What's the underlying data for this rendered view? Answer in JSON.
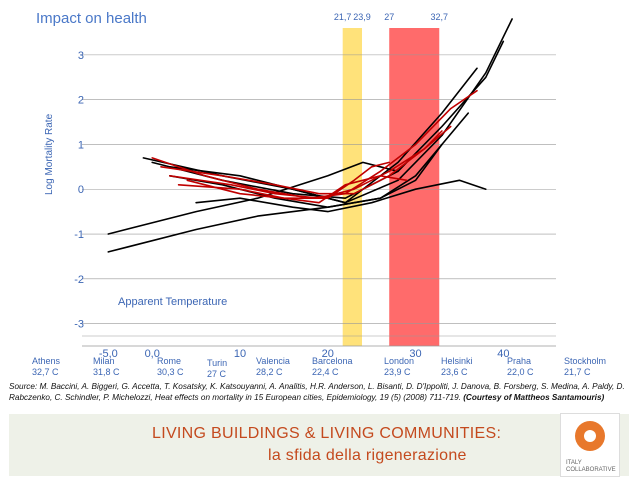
{
  "title": "Impact on health",
  "colors": {
    "axis_text": "#3c66b4",
    "yellow_band": "#ffe27a",
    "red_band": "#ff6b6b",
    "black_curve": "#000000",
    "red_curve": "#c00000"
  },
  "chart_data": {
    "type": "line",
    "ylabel": "Log Mortality Rate",
    "xlabel": "Apparent Temperature",
    "xlim": [
      -8,
      46
    ],
    "ylim": [
      -3.5,
      3.6
    ],
    "x_ticks": [
      "-5,0",
      "0,0",
      "10",
      "20",
      "30",
      "40"
    ],
    "x_tick_values": [
      -5,
      0,
      10,
      20,
      30,
      40
    ],
    "y_ticks": [
      "3",
      "2",
      "1",
      "0",
      "-1",
      "-2",
      "-3"
    ],
    "y_tick_values": [
      3,
      2,
      1,
      0,
      -1,
      -2,
      -3
    ],
    "grid": "horizontal",
    "top_markers": [
      "21,7",
      "23,9",
      "27",
      "32,7"
    ],
    "top_marker_values": [
      21.7,
      23.9,
      27,
      32.7
    ],
    "bands": [
      {
        "from": 21.7,
        "to": 23.9,
        "color": "yellow"
      },
      {
        "from": 27,
        "to": 32.7,
        "color": "red"
      }
    ],
    "series": [
      {
        "color": "black",
        "x": [
          -1,
          8,
          16,
          22,
          28,
          33,
          38,
          41
        ],
        "y": [
          0.7,
          0.3,
          0.0,
          -0.3,
          0.2,
          1.2,
          2.6,
          3.8
        ]
      },
      {
        "color": "black",
        "x": [
          0,
          8,
          16,
          22,
          28,
          33,
          38,
          40
        ],
        "y": [
          0.6,
          0.2,
          -0.1,
          -0.2,
          0.4,
          1.4,
          2.5,
          3.3
        ]
      },
      {
        "color": "black",
        "x": [
          2,
          10,
          16,
          22,
          28,
          33,
          37
        ],
        "y": [
          0.5,
          0.3,
          0.0,
          -0.3,
          0.6,
          1.7,
          2.7
        ]
      },
      {
        "color": "black",
        "x": [
          -5,
          5,
          12,
          20,
          26,
          30,
          33
        ],
        "y": [
          -1.4,
          -0.9,
          -0.6,
          -0.4,
          -0.2,
          0.2,
          1.0
        ]
      },
      {
        "color": "black",
        "x": [
          2,
          8,
          14,
          20,
          26,
          30,
          33,
          36
        ],
        "y": [
          0.3,
          0.1,
          -0.2,
          -0.4,
          -0.2,
          0.3,
          1.0,
          1.7
        ]
      },
      {
        "color": "black",
        "x": [
          5,
          10,
          16,
          20,
          25,
          30,
          35,
          38
        ],
        "y": [
          -0.3,
          -0.2,
          -0.4,
          -0.5,
          -0.3,
          0.0,
          0.2,
          0.0
        ]
      },
      {
        "color": "black",
        "x": [
          -5,
          5,
          12,
          20,
          24,
          28
        ],
        "y": [
          -1.0,
          -0.5,
          -0.2,
          0.3,
          0.6,
          0.4
        ]
      },
      {
        "color": "red",
        "x": [
          0,
          6,
          12,
          18,
          22,
          26,
          30,
          34,
          37
        ],
        "y": [
          0.7,
          0.3,
          0.0,
          -0.2,
          -0.1,
          0.4,
          1.0,
          1.8,
          2.2
        ]
      },
      {
        "color": "red",
        "x": [
          1,
          8,
          14,
          19,
          23,
          27,
          31,
          34
        ],
        "y": [
          0.5,
          0.3,
          0.1,
          -0.1,
          -0.1,
          0.3,
          0.9,
          1.4
        ]
      },
      {
        "color": "red",
        "x": [
          2,
          9,
          14,
          19,
          23,
          27,
          31,
          33
        ],
        "y": [
          0.3,
          0.1,
          -0.1,
          -0.2,
          0.0,
          0.4,
          0.9,
          1.3
        ]
      },
      {
        "color": "red",
        "x": [
          3,
          10,
          15,
          19,
          22,
          26,
          29
        ],
        "y": [
          0.1,
          0.0,
          -0.2,
          -0.3,
          0.1,
          0.3,
          0.2
        ]
      },
      {
        "color": "red",
        "x": [
          4,
          10,
          15,
          20,
          23,
          25,
          27
        ],
        "y": [
          0.2,
          -0.1,
          -0.2,
          -0.2,
          0.2,
          0.5,
          0.6
        ]
      }
    ]
  },
  "cities": [
    {
      "name": "Athens",
      "temp": "32,7 C"
    },
    {
      "name": "Milan",
      "temp": "31,8 C"
    },
    {
      "name": "Rome",
      "temp": "30,3 C"
    },
    {
      "name": "Turin",
      "temp": "27 C"
    },
    {
      "name": "Valencia",
      "temp": "28,2 C"
    },
    {
      "name": "Barcelona",
      "temp": "22,4 C"
    },
    {
      "name": "London",
      "temp": "23,9 C"
    },
    {
      "name": "Helsinki",
      "temp": "23,6 C"
    },
    {
      "name": "Praha",
      "temp": "22,0 C"
    },
    {
      "name": "Stockholm",
      "temp": "21,7 C"
    }
  ],
  "source": {
    "text": "Source: M. Baccini, A. Biggeri, G. Accetta, T. Kosatsky, K. Katsouyanni, A. Analitis, H.R. Anderson, L. Bisanti, D. D'Ippoliti, J. Danova, B. Forsberg, S. Medina, A. Paldy, D. Rabczenko, C. Schindler, P. Michelozzi, Heat effects on mortality in 15 European cities, Epidemiology, 19 (5) (2008) 711-719.",
    "credit": "(Courtesy of Mattheos Santamouris)"
  },
  "footer": {
    "line1": "LIVING BUILDINGS & LIVING COMMUNITIES:",
    "line2": "la sfida della rigenerazione",
    "logo_text": "ITALY COLLABORATIVE"
  }
}
